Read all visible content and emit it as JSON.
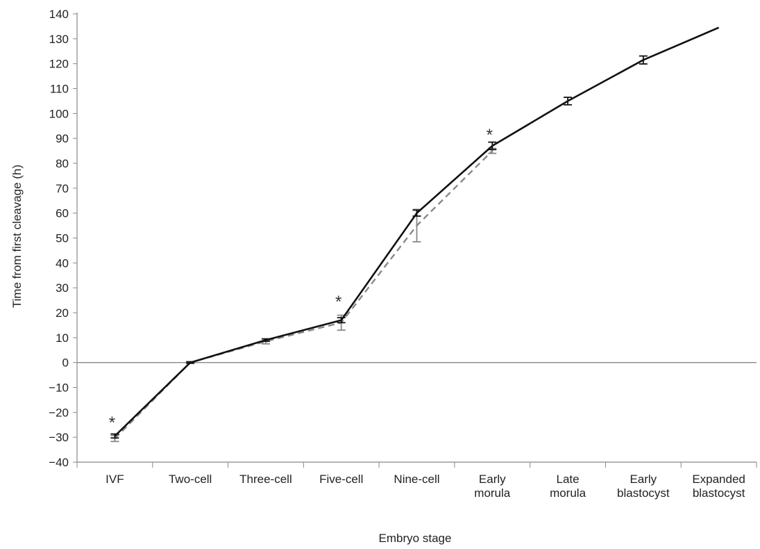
{
  "chart_data": {
    "type": "line",
    "title": "",
    "xlabel": "Embryo stage",
    "ylabel": "Time from first cleavage (h)",
    "ylim": [
      -40,
      140
    ],
    "yticks": [
      -40,
      -30,
      -20,
      -10,
      0,
      10,
      20,
      30,
      40,
      50,
      60,
      70,
      80,
      90,
      100,
      110,
      120,
      130,
      140
    ],
    "ytick_labels": [
      "−40",
      "−30",
      "−20",
      "−10",
      "0",
      "10",
      "20",
      "30",
      "40",
      "50",
      "60",
      "70",
      "80",
      "90",
      "100",
      "110",
      "120",
      "130",
      "140"
    ],
    "grid": false,
    "zero_line": true,
    "categories": [
      [
        "IVF"
      ],
      [
        "Two-cell"
      ],
      [
        "Three-cell"
      ],
      [
        "Five-cell"
      ],
      [
        "Nine-cell"
      ],
      [
        "Early",
        "morula"
      ],
      [
        "Late",
        "morula"
      ],
      [
        "Early",
        "blastocyst"
      ],
      [
        "Expanded",
        "blastocyst"
      ]
    ],
    "series": [
      {
        "color": "#111111",
        "dash": "solid",
        "values": [
          -29.5,
          0,
          9,
          17,
          60,
          87,
          105,
          121.5,
          134.5
        ],
        "errors": [
          0.8,
          0.3,
          0.5,
          1.0,
          1.2,
          1.5,
          1.5,
          1.6,
          null
        ]
      },
      {
        "color": "#888888",
        "dash": "dashed",
        "values": [
          -30.5,
          0,
          8.5,
          16,
          55,
          85,
          null,
          null,
          null
        ],
        "errors": [
          1.2,
          0.3,
          1.0,
          3.0,
          6.5,
          1.0,
          null,
          null,
          null
        ]
      }
    ],
    "annotations": [
      {
        "category_index": 0,
        "y": -23.5,
        "text": "*"
      },
      {
        "category_index": 3,
        "y": 25,
        "text": "*"
      },
      {
        "category_index": 5,
        "y": 92,
        "text": "*"
      }
    ]
  }
}
